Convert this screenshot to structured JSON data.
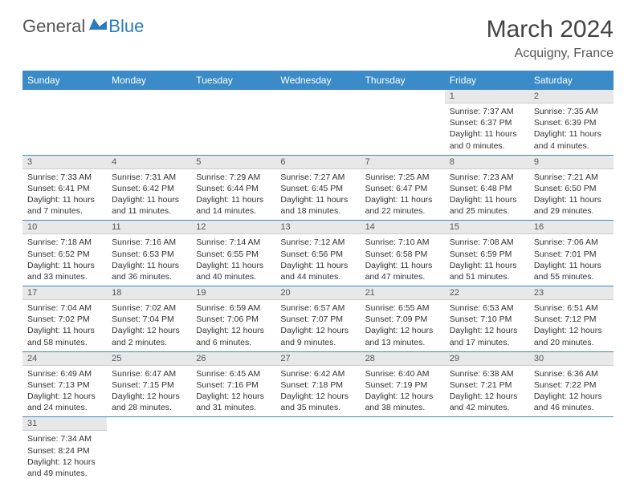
{
  "logo": {
    "general": "General",
    "blue": "Blue"
  },
  "title": "March 2024",
  "location": "Acquigny, France",
  "colors": {
    "header_bg": "#3b8bc9",
    "daynum_bg": "#e8e8e8",
    "border": "#3b8bc9",
    "text": "#333333"
  },
  "day_headers": [
    "Sunday",
    "Monday",
    "Tuesday",
    "Wednesday",
    "Thursday",
    "Friday",
    "Saturday"
  ],
  "weeks": [
    [
      null,
      null,
      null,
      null,
      null,
      {
        "n": "1",
        "sunrise": "7:37 AM",
        "sunset": "6:37 PM",
        "dl1": "Daylight: 11 hours",
        "dl2": "and 0 minutes."
      },
      {
        "n": "2",
        "sunrise": "7:35 AM",
        "sunset": "6:39 PM",
        "dl1": "Daylight: 11 hours",
        "dl2": "and 4 minutes."
      }
    ],
    [
      {
        "n": "3",
        "sunrise": "7:33 AM",
        "sunset": "6:41 PM",
        "dl1": "Daylight: 11 hours",
        "dl2": "and 7 minutes."
      },
      {
        "n": "4",
        "sunrise": "7:31 AM",
        "sunset": "6:42 PM",
        "dl1": "Daylight: 11 hours",
        "dl2": "and 11 minutes."
      },
      {
        "n": "5",
        "sunrise": "7:29 AM",
        "sunset": "6:44 PM",
        "dl1": "Daylight: 11 hours",
        "dl2": "and 14 minutes."
      },
      {
        "n": "6",
        "sunrise": "7:27 AM",
        "sunset": "6:45 PM",
        "dl1": "Daylight: 11 hours",
        "dl2": "and 18 minutes."
      },
      {
        "n": "7",
        "sunrise": "7:25 AM",
        "sunset": "6:47 PM",
        "dl1": "Daylight: 11 hours",
        "dl2": "and 22 minutes."
      },
      {
        "n": "8",
        "sunrise": "7:23 AM",
        "sunset": "6:48 PM",
        "dl1": "Daylight: 11 hours",
        "dl2": "and 25 minutes."
      },
      {
        "n": "9",
        "sunrise": "7:21 AM",
        "sunset": "6:50 PM",
        "dl1": "Daylight: 11 hours",
        "dl2": "and 29 minutes."
      }
    ],
    [
      {
        "n": "10",
        "sunrise": "7:18 AM",
        "sunset": "6:52 PM",
        "dl1": "Daylight: 11 hours",
        "dl2": "and 33 minutes."
      },
      {
        "n": "11",
        "sunrise": "7:16 AM",
        "sunset": "6:53 PM",
        "dl1": "Daylight: 11 hours",
        "dl2": "and 36 minutes."
      },
      {
        "n": "12",
        "sunrise": "7:14 AM",
        "sunset": "6:55 PM",
        "dl1": "Daylight: 11 hours",
        "dl2": "and 40 minutes."
      },
      {
        "n": "13",
        "sunrise": "7:12 AM",
        "sunset": "6:56 PM",
        "dl1": "Daylight: 11 hours",
        "dl2": "and 44 minutes."
      },
      {
        "n": "14",
        "sunrise": "7:10 AM",
        "sunset": "6:58 PM",
        "dl1": "Daylight: 11 hours",
        "dl2": "and 47 minutes."
      },
      {
        "n": "15",
        "sunrise": "7:08 AM",
        "sunset": "6:59 PM",
        "dl1": "Daylight: 11 hours",
        "dl2": "and 51 minutes."
      },
      {
        "n": "16",
        "sunrise": "7:06 AM",
        "sunset": "7:01 PM",
        "dl1": "Daylight: 11 hours",
        "dl2": "and 55 minutes."
      }
    ],
    [
      {
        "n": "17",
        "sunrise": "7:04 AM",
        "sunset": "7:02 PM",
        "dl1": "Daylight: 11 hours",
        "dl2": "and 58 minutes."
      },
      {
        "n": "18",
        "sunrise": "7:02 AM",
        "sunset": "7:04 PM",
        "dl1": "Daylight: 12 hours",
        "dl2": "and 2 minutes."
      },
      {
        "n": "19",
        "sunrise": "6:59 AM",
        "sunset": "7:06 PM",
        "dl1": "Daylight: 12 hours",
        "dl2": "and 6 minutes."
      },
      {
        "n": "20",
        "sunrise": "6:57 AM",
        "sunset": "7:07 PM",
        "dl1": "Daylight: 12 hours",
        "dl2": "and 9 minutes."
      },
      {
        "n": "21",
        "sunrise": "6:55 AM",
        "sunset": "7:09 PM",
        "dl1": "Daylight: 12 hours",
        "dl2": "and 13 minutes."
      },
      {
        "n": "22",
        "sunrise": "6:53 AM",
        "sunset": "7:10 PM",
        "dl1": "Daylight: 12 hours",
        "dl2": "and 17 minutes."
      },
      {
        "n": "23",
        "sunrise": "6:51 AM",
        "sunset": "7:12 PM",
        "dl1": "Daylight: 12 hours",
        "dl2": "and 20 minutes."
      }
    ],
    [
      {
        "n": "24",
        "sunrise": "6:49 AM",
        "sunset": "7:13 PM",
        "dl1": "Daylight: 12 hours",
        "dl2": "and 24 minutes."
      },
      {
        "n": "25",
        "sunrise": "6:47 AM",
        "sunset": "7:15 PM",
        "dl1": "Daylight: 12 hours",
        "dl2": "and 28 minutes."
      },
      {
        "n": "26",
        "sunrise": "6:45 AM",
        "sunset": "7:16 PM",
        "dl1": "Daylight: 12 hours",
        "dl2": "and 31 minutes."
      },
      {
        "n": "27",
        "sunrise": "6:42 AM",
        "sunset": "7:18 PM",
        "dl1": "Daylight: 12 hours",
        "dl2": "and 35 minutes."
      },
      {
        "n": "28",
        "sunrise": "6:40 AM",
        "sunset": "7:19 PM",
        "dl1": "Daylight: 12 hours",
        "dl2": "and 38 minutes."
      },
      {
        "n": "29",
        "sunrise": "6:38 AM",
        "sunset": "7:21 PM",
        "dl1": "Daylight: 12 hours",
        "dl2": "and 42 minutes."
      },
      {
        "n": "30",
        "sunrise": "6:36 AM",
        "sunset": "7:22 PM",
        "dl1": "Daylight: 12 hours",
        "dl2": "and 46 minutes."
      }
    ],
    [
      {
        "n": "31",
        "sunrise": "7:34 AM",
        "sunset": "8:24 PM",
        "dl1": "Daylight: 12 hours",
        "dl2": "and 49 minutes."
      },
      null,
      null,
      null,
      null,
      null,
      null
    ]
  ]
}
